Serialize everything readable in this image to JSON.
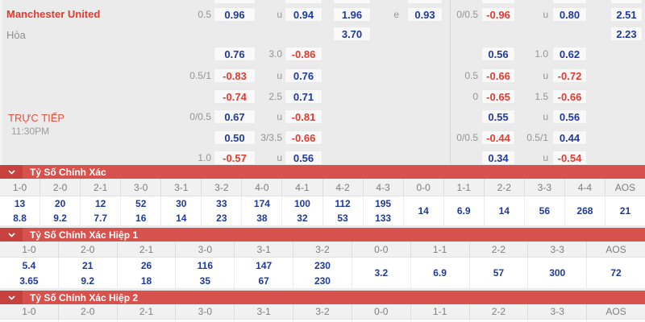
{
  "colors": {
    "background": "#ebebeb",
    "banner_red": "#d7514d",
    "chevron_box_red": "#c7423e",
    "odds_blue": "#1e3a9c",
    "odds_red": "#e5392e",
    "value_blue": "#1e3a9c"
  },
  "odds_panel": {
    "home_team": "Manchester United",
    "draw_label": "Hòa",
    "live_label": "TRỰC TIẾP",
    "time": "11:30PM",
    "left_rows": [
      {
        "h": "0.5",
        "a": "0.96",
        "o": "u",
        "b": "0.94",
        "x": "1.96",
        "e": "e",
        "c": "0.93"
      },
      {
        "h": "",
        "a": "",
        "o": "",
        "b": "",
        "x": "3.70",
        "e": "",
        "c": ""
      },
      {
        "h": "",
        "a": "0.76",
        "o": "3.0",
        "b": "-0.86",
        "x": "",
        "e": "",
        "c": ""
      },
      {
        "h": "0.5/1",
        "a": "-0.83",
        "o": "u",
        "b": "0.76",
        "x": "",
        "e": "",
        "c": ""
      },
      {
        "h": "",
        "a": "-0.74",
        "o": "2.5",
        "b": "0.71",
        "x": "",
        "e": "",
        "c": ""
      },
      {
        "h": "0/0.5",
        "a": "0.67",
        "o": "u",
        "b": "-0.81",
        "x": "",
        "e": "",
        "c": ""
      },
      {
        "h": "",
        "a": "0.50",
        "o": "3/3.5",
        "b": "-0.66",
        "x": "",
        "e": "",
        "c": ""
      },
      {
        "h": "1.0",
        "a": "-0.57",
        "o": "u",
        "b": "0.56",
        "x": "",
        "e": "",
        "c": ""
      }
    ],
    "right_rows": [
      {
        "h": "0/0.5",
        "a": "-0.96",
        "o": "u",
        "b": "0.80",
        "x": "2.51"
      },
      {
        "h": "",
        "a": "",
        "o": "",
        "b": "",
        "x": "2.23"
      },
      {
        "h": "",
        "a": "0.56",
        "o": "1.0",
        "b": "0.62",
        "x": ""
      },
      {
        "h": "0.5",
        "a": "-0.66",
        "o": "u",
        "b": "-0.72",
        "x": ""
      },
      {
        "h": "0",
        "a": "-0.65",
        "o": "1.5",
        "b": "-0.66",
        "x": ""
      },
      {
        "h": "",
        "a": "0.55",
        "o": "u",
        "b": "0.56",
        "x": ""
      },
      {
        "h": "0/0.5",
        "a": "-0.44",
        "o": "0.5/1",
        "b": "0.44",
        "x": ""
      },
      {
        "h": "",
        "a": "0.34",
        "o": "u",
        "b": "-0.54",
        "x": ""
      }
    ]
  },
  "sections": [
    {
      "title": "Tỷ Số Chính Xác",
      "columns": [
        {
          "score": "1-0",
          "values": [
            "13",
            "8.8"
          ]
        },
        {
          "score": "2-0",
          "values": [
            "20",
            "9.2"
          ]
        },
        {
          "score": "2-1",
          "values": [
            "12",
            "7.7"
          ]
        },
        {
          "score": "3-0",
          "values": [
            "52",
            "16"
          ]
        },
        {
          "score": "3-1",
          "values": [
            "30",
            "14"
          ]
        },
        {
          "score": "3-2",
          "values": [
            "33",
            "23"
          ]
        },
        {
          "score": "4-0",
          "values": [
            "174",
            "38"
          ]
        },
        {
          "score": "4-1",
          "values": [
            "100",
            "32"
          ]
        },
        {
          "score": "4-2",
          "values": [
            "112",
            "53"
          ]
        },
        {
          "score": "4-3",
          "values": [
            "195",
            "133"
          ]
        },
        {
          "score": "0-0",
          "values": [
            "14"
          ]
        },
        {
          "score": "1-1",
          "values": [
            "6.9"
          ]
        },
        {
          "score": "2-2",
          "values": [
            "14"
          ]
        },
        {
          "score": "3-3",
          "values": [
            "56"
          ]
        },
        {
          "score": "4-4",
          "values": [
            "268"
          ]
        },
        {
          "score": "AOS",
          "values": [
            "21"
          ]
        }
      ]
    },
    {
      "title": "Tỷ Số Chính Xác Hiệp 1",
      "columns": [
        {
          "score": "1-0",
          "values": [
            "5.4",
            "3.65"
          ]
        },
        {
          "score": "2-0",
          "values": [
            "21",
            "9.2"
          ]
        },
        {
          "score": "2-1",
          "values": [
            "26",
            "18"
          ]
        },
        {
          "score": "3-0",
          "values": [
            "116",
            "35"
          ]
        },
        {
          "score": "3-1",
          "values": [
            "147",
            "67"
          ]
        },
        {
          "score": "3-2",
          "values": [
            "230",
            "230"
          ]
        },
        {
          "score": "0-0",
          "values": [
            "3.2"
          ]
        },
        {
          "score": "1-1",
          "values": [
            "6.9"
          ]
        },
        {
          "score": "2-2",
          "values": [
            "57"
          ]
        },
        {
          "score": "3-3",
          "values": [
            "300"
          ]
        },
        {
          "score": "AOS",
          "values": [
            "72"
          ]
        }
      ]
    },
    {
      "title": "Tỷ Số Chính Xác Hiệp 2",
      "columns": [
        {
          "score": "1-0",
          "values": []
        },
        {
          "score": "2-0",
          "values": []
        },
        {
          "score": "2-1",
          "values": []
        },
        {
          "score": "3-0",
          "values": []
        },
        {
          "score": "3-1",
          "values": []
        },
        {
          "score": "3-2",
          "values": []
        },
        {
          "score": "0-0",
          "values": []
        },
        {
          "score": "1-1",
          "values": []
        },
        {
          "score": "2-2",
          "values": []
        },
        {
          "score": "3-3",
          "values": []
        },
        {
          "score": "AOS",
          "values": []
        }
      ]
    }
  ]
}
